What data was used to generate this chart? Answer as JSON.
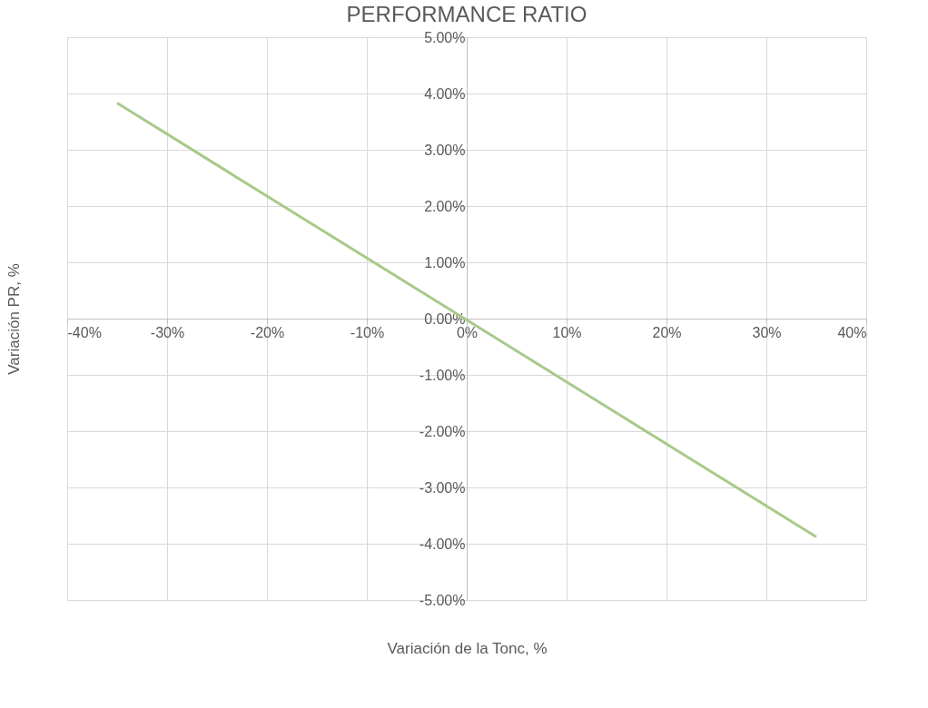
{
  "chart_data": {
    "type": "line",
    "title": "PERFORMANCE RATIO",
    "xlabel": "Variación de la Tonc, %",
    "ylabel": "Variación PR, %",
    "x": [
      -35,
      35
    ],
    "series": [
      {
        "color": "#a9c98a",
        "values": [
          3.83,
          -3.88
        ]
      }
    ],
    "xlim": [
      -40,
      40
    ],
    "xticks": [
      {
        "value": -40,
        "label": "-40%"
      },
      {
        "value": -30,
        "label": "-30%"
      },
      {
        "value": -20,
        "label": "-20%"
      },
      {
        "value": -10,
        "label": "-10%"
      },
      {
        "value": 0,
        "label": "0%"
      },
      {
        "value": 10,
        "label": "10%"
      },
      {
        "value": 20,
        "label": "20%"
      },
      {
        "value": 30,
        "label": "30%"
      },
      {
        "value": 40,
        "label": "40%"
      }
    ],
    "ylim": [
      -5,
      5
    ],
    "yticks": [
      {
        "value": -5,
        "label": "-5.00%"
      },
      {
        "value": -4,
        "label": "-4.00%"
      },
      {
        "value": -3,
        "label": "-3.00%"
      },
      {
        "value": -2,
        "label": "-2.00%"
      },
      {
        "value": -1,
        "label": "-1.00%"
      },
      {
        "value": 0,
        "label": "0.00%"
      },
      {
        "value": 1,
        "label": "1.00%"
      },
      {
        "value": 2,
        "label": "2.00%"
      },
      {
        "value": 3,
        "label": "3.00%"
      },
      {
        "value": 4,
        "label": "4.00%"
      },
      {
        "value": 5,
        "label": "5.00%"
      }
    ],
    "grid": true,
    "marker": "none",
    "line_style": "solid"
  }
}
